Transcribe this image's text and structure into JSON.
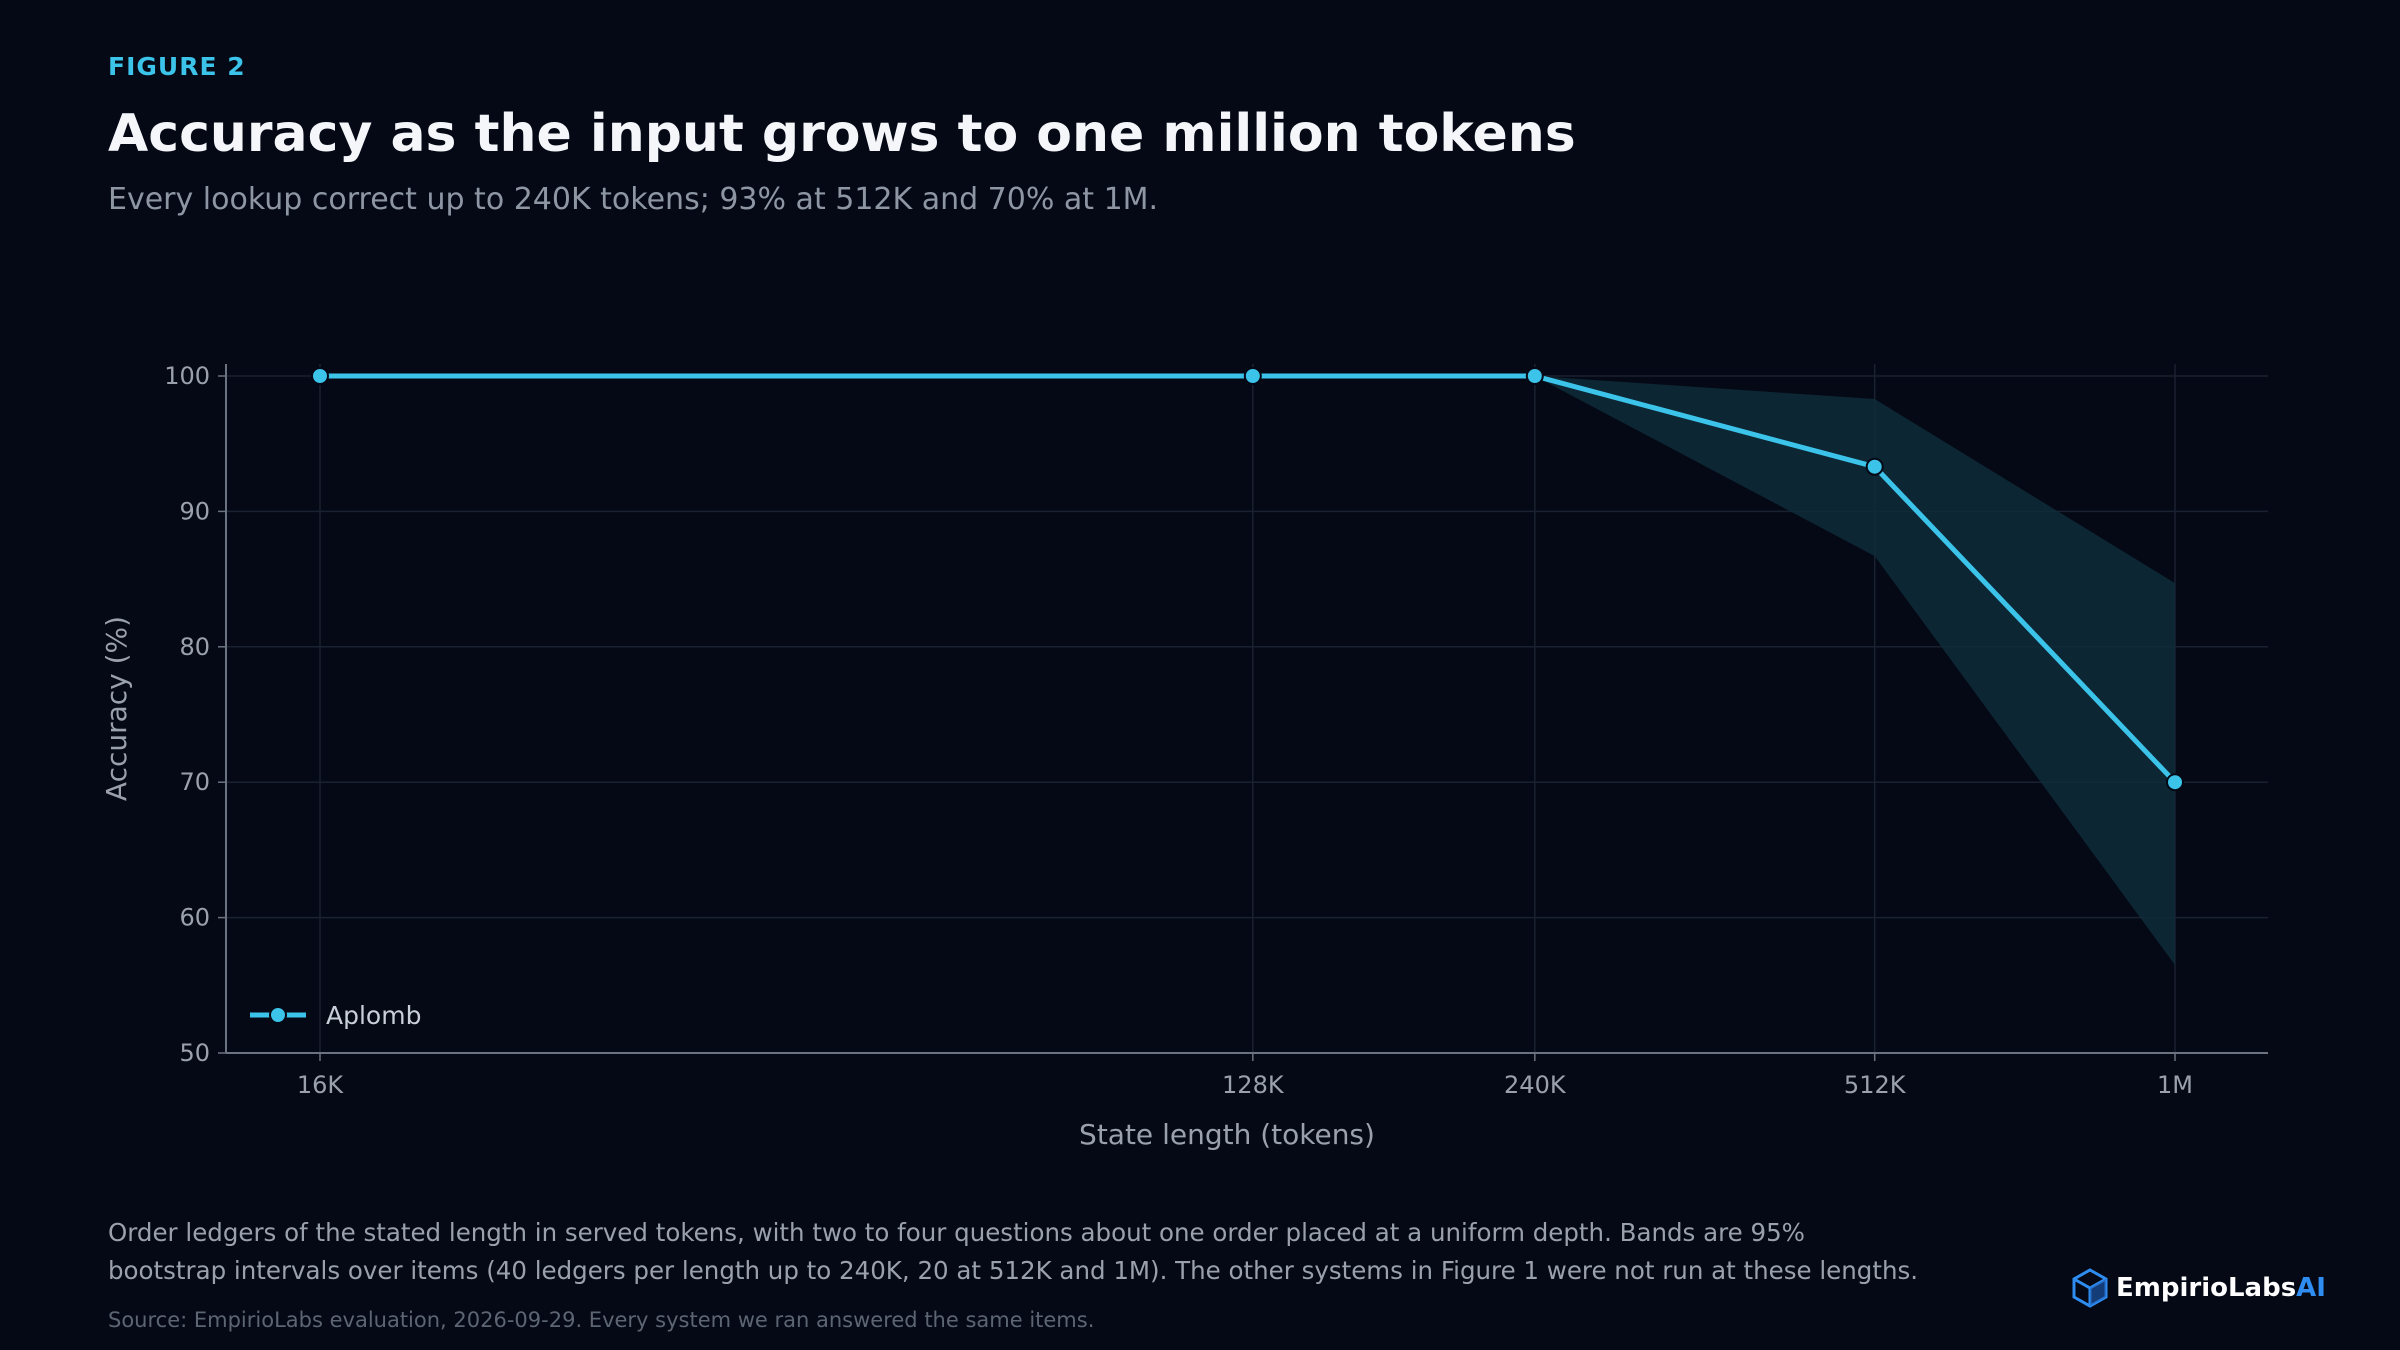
{
  "figure_label": "FIGURE 2",
  "title": "Accuracy as the input grows to one million tokens",
  "subtitle": "Every lookup correct up to 240K tokens; 93% at 512K and 70% at 1M.",
  "caption": "Order ledgers of the stated length in served tokens, with two to four questions about one order placed at a uniform depth. Bands are 95% bootstrap intervals over items (40 ledgers per length up to 240K, 20 at 512K and 1M). The other systems in Figure 1 were not run at these lengths.",
  "source": "Source: EmpirioLabs evaluation, 2026-09-29. Every system we ran answered the same items.",
  "logo": {
    "name": "EmpirioLabs",
    "suffix": "AI",
    "icon": "cube-logo-icon"
  },
  "colors": {
    "accent": "#3bc3ea",
    "band": "#0f2b38",
    "background": "#040915"
  },
  "chart_data": {
    "type": "line",
    "xlabel": "State length (tokens)",
    "ylabel": "Accuracy (%)",
    "x_tick_labels": [
      "16K",
      "128K",
      "240K",
      "512K",
      "1M"
    ],
    "x_tokens": [
      16000,
      128000,
      240000,
      512000,
      1000000
    ],
    "x_scale": "log",
    "ylim": [
      50,
      100
    ],
    "y_ticks": [
      50,
      60,
      70,
      80,
      90,
      100
    ],
    "grid": true,
    "legend_position": "bottom-left",
    "series": [
      {
        "name": "Aplomb",
        "values": [
          100,
          100,
          100,
          93.3,
          70
        ],
        "ci_lower": [
          100,
          100,
          100,
          86.7,
          56.5
        ],
        "ci_upper": [
          100,
          100,
          100,
          98.3,
          84.7
        ],
        "color": "#3bc3ea"
      }
    ]
  }
}
